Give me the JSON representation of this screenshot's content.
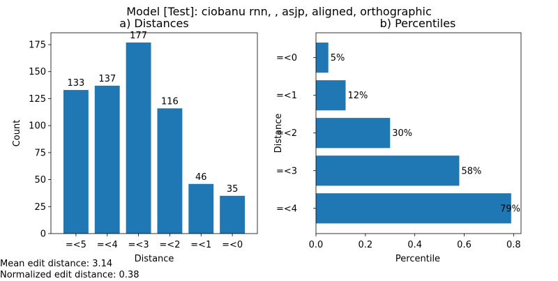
{
  "suptitle": "Model [Test]: ciobanu rnn, , asjp, aligned, orthographic",
  "stats": {
    "mean": "Mean edit distance: 3.14",
    "normalized": "Normalized edit distance: 0.38"
  },
  "chart_data": [
    {
      "type": "bar",
      "title": "a) Distances",
      "xlabel": "Distance",
      "ylabel": "Count",
      "categories": [
        "=<5",
        "=<4",
        "=<3",
        "=<2",
        "=<1",
        "=<0"
      ],
      "values": [
        133,
        137,
        177,
        116,
        46,
        35
      ],
      "data_labels": [
        "133",
        "137",
        "177",
        "116",
        "46",
        "35"
      ],
      "ylim": [
        0,
        186
      ],
      "yticks": [
        0,
        25,
        50,
        75,
        100,
        125,
        150,
        175
      ],
      "color": "#1f77b4",
      "grid": false
    },
    {
      "type": "bar",
      "orientation": "horizontal",
      "title": "b) Percentiles",
      "xlabel": "Percentile",
      "ylabel": "Distance",
      "categories": [
        "=<0",
        "=<1",
        "=<2",
        "=<3",
        "=<4"
      ],
      "values": [
        0.05,
        0.12,
        0.3,
        0.58,
        0.79
      ],
      "data_labels": [
        "5%",
        "12%",
        "30%",
        "58%",
        "79%"
      ],
      "xlim": [
        0,
        0.83
      ],
      "xticks": [
        "0.0",
        "0.2",
        "0.4",
        "0.6",
        "0.8"
      ],
      "color": "#1f77b4",
      "grid": false
    }
  ]
}
